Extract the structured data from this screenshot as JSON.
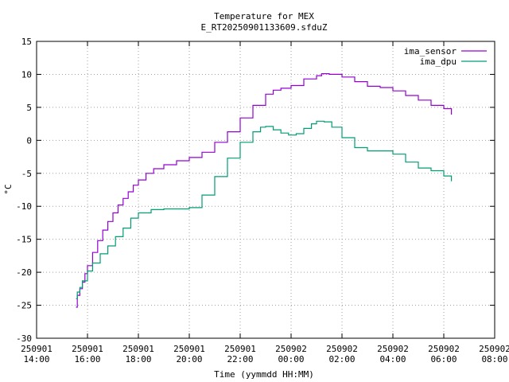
{
  "chart_data": {
    "type": "line",
    "title": "Temperature for MEX",
    "subtitle": "E_RT20250901133609.sfduZ",
    "xlabel": "Time (yymmdd HH:MM)",
    "ylabel": "°C",
    "x_unit": "hours",
    "xlim": [
      14,
      32
    ],
    "ylim": [
      -30,
      15
    ],
    "grid": true,
    "legend": "top-right",
    "x_ticks": [
      {
        "value": 14,
        "line1": "250901",
        "line2": "14:00"
      },
      {
        "value": 16,
        "line1": "250901",
        "line2": "16:00"
      },
      {
        "value": 18,
        "line1": "250901",
        "line2": "18:00"
      },
      {
        "value": 20,
        "line1": "250901",
        "line2": "20:00"
      },
      {
        "value": 22,
        "line1": "250901",
        "line2": "22:00"
      },
      {
        "value": 24,
        "line1": "250902",
        "line2": "00:00"
      },
      {
        "value": 26,
        "line1": "250902",
        "line2": "02:00"
      },
      {
        "value": 28,
        "line1": "250902",
        "line2": "04:00"
      },
      {
        "value": 30,
        "line1": "250902",
        "line2": "06:00"
      },
      {
        "value": 32,
        "line1": "250902",
        "line2": "08:00"
      }
    ],
    "y_ticks": [
      -30,
      -25,
      -20,
      -15,
      -10,
      -5,
      0,
      5,
      10,
      15
    ],
    "series": [
      {
        "name": "ima_sensor",
        "color": "#9400d3",
        "x": [
          15.55,
          15.6,
          15.7,
          15.8,
          15.9,
          16.0,
          16.2,
          16.4,
          16.6,
          16.8,
          17.0,
          17.2,
          17.4,
          17.6,
          17.8,
          18.0,
          18.3,
          18.6,
          19.0,
          19.5,
          20.0,
          20.5,
          21.0,
          21.5,
          22.0,
          22.5,
          23.0,
          23.3,
          23.6,
          24.0,
          24.5,
          25.0,
          25.2,
          25.5,
          26.0,
          26.5,
          27.0,
          27.5,
          28.0,
          28.5,
          29.0,
          29.5,
          30.0,
          30.3
        ],
        "y": [
          -25.3,
          -23.5,
          -22.5,
          -21.5,
          -20.2,
          -19.0,
          -17.0,
          -15.2,
          -13.6,
          -12.3,
          -11.0,
          -9.8,
          -8.8,
          -7.8,
          -6.8,
          -6.0,
          -5.0,
          -4.3,
          -3.7,
          -3.1,
          -2.6,
          -1.8,
          -0.3,
          1.3,
          3.4,
          5.3,
          7.0,
          7.6,
          7.9,
          8.3,
          9.3,
          9.8,
          10.1,
          10.0,
          9.6,
          8.9,
          8.2,
          8.0,
          7.5,
          6.8,
          6.1,
          5.3,
          4.8,
          3.9
        ]
      },
      {
        "name": "ima_dpu",
        "color": "#009e73",
        "x": [
          15.55,
          15.6,
          15.7,
          15.8,
          16.0,
          16.2,
          16.5,
          16.8,
          17.1,
          17.4,
          17.7,
          18.0,
          18.5,
          19.0,
          19.5,
          20.0,
          20.5,
          21.0,
          21.5,
          22.0,
          22.5,
          22.8,
          23.0,
          23.3,
          23.6,
          23.9,
          24.2,
          24.5,
          24.8,
          25.0,
          25.3,
          25.6,
          26.0,
          26.5,
          27.0,
          27.5,
          28.0,
          28.5,
          29.0,
          29.5,
          30.0,
          30.3
        ],
        "y": [
          -24.0,
          -23.0,
          -22.3,
          -21.3,
          -19.8,
          -18.6,
          -17.2,
          -16.0,
          -14.6,
          -13.3,
          -11.8,
          -11.0,
          -10.5,
          -10.4,
          -10.4,
          -10.2,
          -8.3,
          -5.5,
          -2.7,
          -0.3,
          1.3,
          2.0,
          2.1,
          1.6,
          1.1,
          0.8,
          1.0,
          1.8,
          2.5,
          2.9,
          2.8,
          2.0,
          0.4,
          -1.1,
          -1.6,
          -1.6,
          -2.1,
          -3.3,
          -4.2,
          -4.6,
          -5.4,
          -6.2
        ]
      }
    ]
  }
}
